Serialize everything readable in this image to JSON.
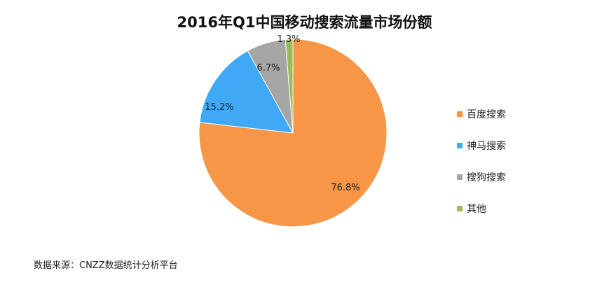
{
  "chart_data": {
    "type": "pie",
    "title": "2016年Q1中国移动搜索流量市场份额",
    "categories": [
      "百度搜索",
      "神马搜索",
      "搜狗搜索",
      "其他"
    ],
    "values": [
      76.8,
      15.2,
      6.7,
      1.3
    ],
    "labels": [
      "76.8%",
      "15.2%",
      "6.7%",
      "1.3%"
    ],
    "colors": [
      "#F79646",
      "#3FA9F5",
      "#A5A5A5",
      "#9BBB59"
    ],
    "legend_placement": "right"
  },
  "source": "数据来源：CNZZ数据统计分析平台"
}
